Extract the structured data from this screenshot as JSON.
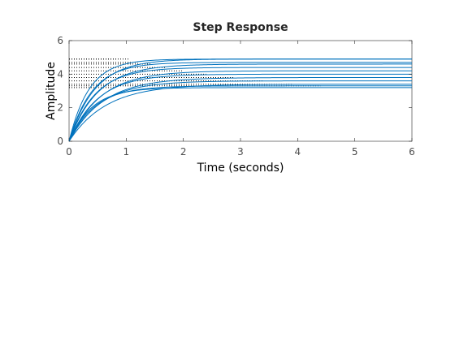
{
  "chart_data": {
    "type": "line",
    "title": "Step Response",
    "xlabel": "Time (seconds)",
    "ylabel": "Amplitude",
    "xlim": [
      0,
      6
    ],
    "ylim": [
      0,
      6
    ],
    "xticks": [
      "0",
      "1",
      "2",
      "3",
      "4",
      "5",
      "6"
    ],
    "yticks": [
      "0",
      "2",
      "4",
      "6"
    ],
    "grid": false,
    "line_color": "#0072BD",
    "series": [
      {
        "steady_state": 4.9,
        "time_constant": 0.35,
        "guide_end": 0.85
      },
      {
        "steady_state": 4.9,
        "time_constant": 0.45,
        "guide_end": 1.05
      },
      {
        "steady_state": 4.7,
        "time_constant": 0.4,
        "guide_end": 1.2
      },
      {
        "steady_state": 4.6,
        "time_constant": 0.5,
        "guide_end": 1.45
      },
      {
        "steady_state": 4.4,
        "time_constant": 0.45,
        "guide_end": 1.7
      },
      {
        "steady_state": 4.2,
        "time_constant": 0.55,
        "guide_end": 2.0
      },
      {
        "steady_state": 4.0,
        "time_constant": 0.5,
        "guide_end": 2.4
      },
      {
        "steady_state": 3.8,
        "time_constant": 0.6,
        "guide_end": 2.9
      },
      {
        "steady_state": 3.6,
        "time_constant": 0.55,
        "guide_end": 3.4
      },
      {
        "steady_state": 3.4,
        "time_constant": 0.65,
        "guide_end": 3.9
      },
      {
        "steady_state": 3.3,
        "time_constant": 0.45,
        "guide_end": 4.4
      },
      {
        "steady_state": 3.2,
        "time_constant": 0.4,
        "guide_end": 0.8
      }
    ]
  }
}
